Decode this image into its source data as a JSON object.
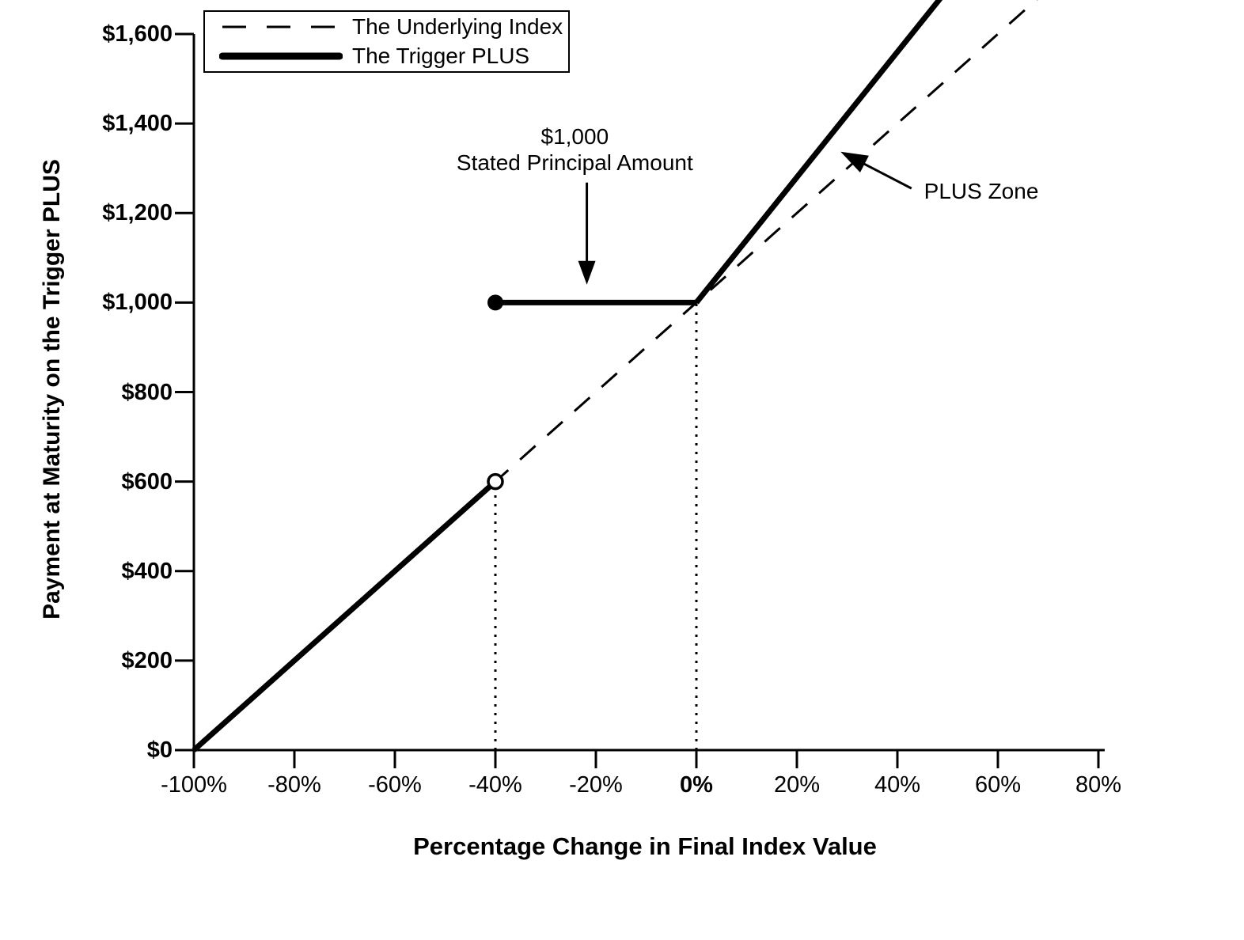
{
  "chart_data": {
    "type": "line",
    "title": "",
    "xlabel": "Percentage Change in Final Index Value",
    "ylabel": "Payment at Maturity on the Trigger PLUS",
    "xlim": [
      -100,
      80
    ],
    "ylim": [
      0,
      1600
    ],
    "x_unit": "percent",
    "y_unit": "USD",
    "grid": false,
    "x_ticks": [
      {
        "v": -100,
        "label": "-100%"
      },
      {
        "v": -80,
        "label": "-80%"
      },
      {
        "v": -60,
        "label": "-60%"
      },
      {
        "v": -40,
        "label": "-40%"
      },
      {
        "v": -20,
        "label": "-20%"
      },
      {
        "v": 0,
        "label": "0%",
        "bold": true
      },
      {
        "v": 20,
        "label": "20%"
      },
      {
        "v": 40,
        "label": "40%"
      },
      {
        "v": 60,
        "label": "60%"
      },
      {
        "v": 80,
        "label": "80%"
      }
    ],
    "y_ticks": [
      {
        "v": 0,
        "label": "$0"
      },
      {
        "v": 200,
        "label": "$200"
      },
      {
        "v": 400,
        "label": "$400"
      },
      {
        "v": 600,
        "label": "$600"
      },
      {
        "v": 800,
        "label": "$800"
      },
      {
        "v": 1000,
        "label": "$1,000"
      },
      {
        "v": 1200,
        "label": "$1,200"
      },
      {
        "v": 1400,
        "label": "$1,400"
      },
      {
        "v": 1600,
        "label": "$1,600"
      }
    ],
    "legend": {
      "position": "top-left",
      "entries": [
        {
          "label": "The Underlying Index",
          "style": "dashed"
        },
        {
          "label": "The Trigger PLUS",
          "style": "thick"
        }
      ]
    },
    "series": [
      {
        "name": "The Underlying Index",
        "style": "dashed",
        "points": [
          [
            -100,
            0
          ],
          [
            80,
            1800
          ]
        ]
      },
      {
        "name": "The Trigger PLUS",
        "style": "thick",
        "segments": [
          {
            "points": [
              [
                -100,
                0
              ],
              [
                -40,
                600
              ]
            ],
            "marker_end": "open-circle"
          },
          {
            "points": [
              [
                -40,
                1000
              ],
              [
                0,
                1000
              ]
            ],
            "marker_start": "filled-circle"
          },
          {
            "points": [
              [
                0,
                1000
              ],
              [
                56,
                1784
              ]
            ]
          }
        ]
      }
    ],
    "reference_lines": [
      {
        "style": "dotted-vertical",
        "x": -40,
        "y_from": 0,
        "y_to": 600
      },
      {
        "style": "dotted-vertical",
        "x": 0,
        "y_from": 0,
        "y_to": 1000
      }
    ],
    "annotations": {
      "principal": {
        "line1": "$1,000",
        "line2": "Stated Principal Amount",
        "text_x": -24.2,
        "text_y": 1400,
        "arrow": {
          "x": -21.8,
          "y_from": 1268,
          "y_to": 1040
        }
      },
      "plus_zone": {
        "text": "PLUS Zone",
        "text_x": 45.3,
        "text_y": 1248,
        "arrow": {
          "from_x": 42.8,
          "from_y": 1255,
          "to_x": 28.7,
          "to_y": 1337
        }
      }
    }
  }
}
